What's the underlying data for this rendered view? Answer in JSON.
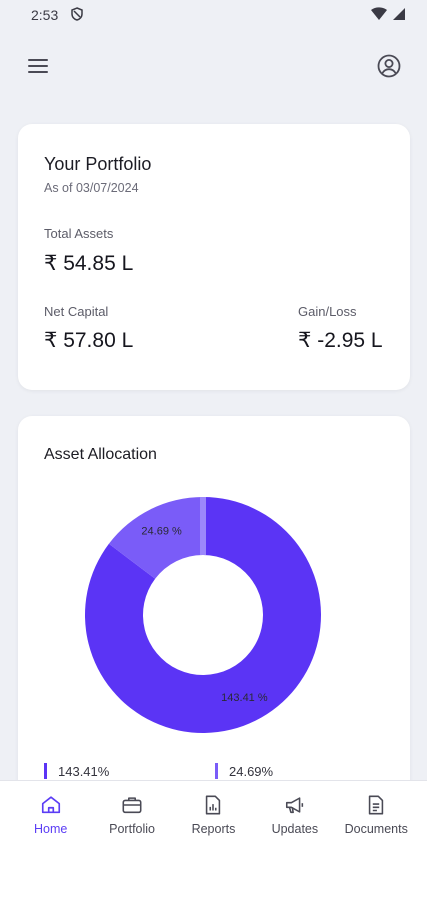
{
  "status_bar": {
    "time": "2:53"
  },
  "portfolio": {
    "title": "Your Portfolio",
    "as_of": "As of 03/07/2024",
    "total_assets_label": "Total Assets",
    "total_assets_value": "₹ 54.85 L",
    "net_capital_label": "Net Capital",
    "net_capital_value": "₹ 57.80 L",
    "gain_loss_label": "Gain/Loss",
    "gain_loss_value": "₹ -2.95 L"
  },
  "allocation": {
    "title": "Asset Allocation"
  },
  "chart_data": {
    "type": "pie",
    "donut": true,
    "values": [
      143.41,
      24.69
    ],
    "slice_labels": [
      "143.41 %",
      "24.69 %"
    ],
    "legend": [
      "143.41%",
      "24.69%"
    ],
    "colors": [
      "#5b34f5",
      "#7a5cf8"
    ]
  },
  "nav": {
    "items": [
      {
        "label": "Home",
        "icon": "home-icon",
        "active": true
      },
      {
        "label": "Portfolio",
        "icon": "briefcase-icon",
        "active": false
      },
      {
        "label": "Reports",
        "icon": "report-icon",
        "active": false
      },
      {
        "label": "Updates",
        "icon": "megaphone-icon",
        "active": false
      },
      {
        "label": "Documents",
        "icon": "document-icon",
        "active": false
      }
    ]
  },
  "colors": {
    "accent": "#5b3df5",
    "background": "#eef0f5"
  }
}
